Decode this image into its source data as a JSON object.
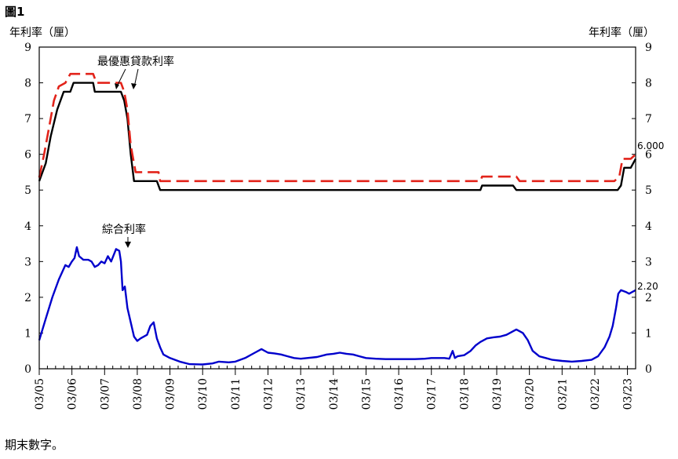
{
  "figure_label": "圖1",
  "footnote": "期末數字。",
  "chart_data": {
    "type": "line",
    "ylabel_left": "年利率（厘）",
    "ylabel_right": "年利率（厘）",
    "ylim": [
      0,
      9
    ],
    "yticks": [
      "0",
      "1",
      "2",
      "3",
      "4",
      "5",
      "6",
      "7",
      "8",
      "9"
    ],
    "xlim": [
      2005.0,
      2023.25
    ],
    "categories": [
      "03/05",
      "03/06",
      "03/07",
      "03/08",
      "03/09",
      "03/10",
      "03/11",
      "03/12",
      "03/13",
      "03/14",
      "03/15",
      "03/16",
      "03/17",
      "03/18",
      "03/19",
      "03/20",
      "03/21",
      "03/22",
      "03/23"
    ],
    "annotations": {
      "prime": "最優惠貸款利率",
      "composite": "綜合利率"
    },
    "series": [
      {
        "name": "",
        "color": "#000000",
        "style": "solid",
        "end_label": "",
        "points": [
          [
            2005.0,
            5.25
          ],
          [
            2005.2,
            5.75
          ],
          [
            2005.35,
            6.5
          ],
          [
            2005.55,
            7.25
          ],
          [
            2005.75,
            7.75
          ],
          [
            2005.95,
            7.75
          ],
          [
            2006.05,
            8.0
          ],
          [
            2006.65,
            8.0
          ],
          [
            2006.7,
            7.75
          ],
          [
            2007.5,
            7.75
          ],
          [
            2007.6,
            7.5
          ],
          [
            2007.7,
            7.0
          ],
          [
            2007.8,
            6.0
          ],
          [
            2007.9,
            5.25
          ],
          [
            2008.6,
            5.25
          ],
          [
            2008.7,
            5.0
          ],
          [
            2018.5,
            5.0
          ],
          [
            2018.55,
            5.125
          ],
          [
            2019.5,
            5.125
          ],
          [
            2019.6,
            5.0
          ],
          [
            2022.7,
            5.0
          ],
          [
            2022.8,
            5.125
          ],
          [
            2022.9,
            5.625
          ],
          [
            2023.1,
            5.625
          ],
          [
            2023.25,
            5.875
          ]
        ]
      },
      {
        "name": "",
        "color": "#e2231a",
        "style": "dashed",
        "end_label": "6.000",
        "points": [
          [
            2005.0,
            5.35
          ],
          [
            2005.15,
            6.0
          ],
          [
            2005.3,
            6.75
          ],
          [
            2005.45,
            7.5
          ],
          [
            2005.6,
            7.9
          ],
          [
            2005.8,
            8.0
          ],
          [
            2005.95,
            8.25
          ],
          [
            2006.65,
            8.25
          ],
          [
            2006.75,
            8.0
          ],
          [
            2007.5,
            8.0
          ],
          [
            2007.6,
            7.75
          ],
          [
            2007.7,
            7.25
          ],
          [
            2007.8,
            6.25
          ],
          [
            2007.95,
            5.5
          ],
          [
            2008.65,
            5.5
          ],
          [
            2008.7,
            5.25
          ],
          [
            2018.5,
            5.25
          ],
          [
            2018.55,
            5.375
          ],
          [
            2019.6,
            5.375
          ],
          [
            2019.7,
            5.25
          ],
          [
            2022.6,
            5.25
          ],
          [
            2022.75,
            5.375
          ],
          [
            2022.85,
            5.875
          ],
          [
            2023.1,
            5.875
          ],
          [
            2023.25,
            6.0
          ]
        ]
      },
      {
        "name": "",
        "color": "#0000cc",
        "style": "solid",
        "end_label": "2.20",
        "points": [
          [
            2005.0,
            0.8
          ],
          [
            2005.2,
            1.4
          ],
          [
            2005.4,
            2.0
          ],
          [
            2005.6,
            2.5
          ],
          [
            2005.8,
            2.9
          ],
          [
            2005.9,
            2.85
          ],
          [
            2006.0,
            3.0
          ],
          [
            2006.08,
            3.1
          ],
          [
            2006.15,
            3.4
          ],
          [
            2006.22,
            3.15
          ],
          [
            2006.35,
            3.05
          ],
          [
            2006.5,
            3.05
          ],
          [
            2006.6,
            3.0
          ],
          [
            2006.7,
            2.85
          ],
          [
            2006.8,
            2.9
          ],
          [
            2006.9,
            3.0
          ],
          [
            2007.0,
            2.95
          ],
          [
            2007.1,
            3.15
          ],
          [
            2007.2,
            3.0
          ],
          [
            2007.35,
            3.35
          ],
          [
            2007.45,
            3.3
          ],
          [
            2007.5,
            3.0
          ],
          [
            2007.55,
            2.2
          ],
          [
            2007.62,
            2.3
          ],
          [
            2007.7,
            1.7
          ],
          [
            2007.8,
            1.3
          ],
          [
            2007.9,
            0.9
          ],
          [
            2008.0,
            0.78
          ],
          [
            2008.1,
            0.85
          ],
          [
            2008.3,
            0.95
          ],
          [
            2008.4,
            1.2
          ],
          [
            2008.5,
            1.3
          ],
          [
            2008.6,
            0.85
          ],
          [
            2008.7,
            0.6
          ],
          [
            2008.8,
            0.4
          ],
          [
            2009.0,
            0.3
          ],
          [
            2009.3,
            0.2
          ],
          [
            2009.6,
            0.13
          ],
          [
            2010.0,
            0.12
          ],
          [
            2010.3,
            0.15
          ],
          [
            2010.5,
            0.2
          ],
          [
            2010.8,
            0.18
          ],
          [
            2011.0,
            0.2
          ],
          [
            2011.3,
            0.3
          ],
          [
            2011.6,
            0.45
          ],
          [
            2011.8,
            0.55
          ],
          [
            2012.0,
            0.45
          ],
          [
            2012.2,
            0.43
          ],
          [
            2012.4,
            0.4
          ],
          [
            2012.6,
            0.35
          ],
          [
            2012.8,
            0.3
          ],
          [
            2013.0,
            0.28
          ],
          [
            2013.2,
            0.3
          ],
          [
            2013.5,
            0.33
          ],
          [
            2013.8,
            0.4
          ],
          [
            2014.0,
            0.42
          ],
          [
            2014.2,
            0.45
          ],
          [
            2014.4,
            0.42
          ],
          [
            2014.6,
            0.4
          ],
          [
            2014.8,
            0.35
          ],
          [
            2015.0,
            0.3
          ],
          [
            2015.3,
            0.28
          ],
          [
            2015.6,
            0.27
          ],
          [
            2016.0,
            0.27
          ],
          [
            2016.5,
            0.27
          ],
          [
            2016.8,
            0.28
          ],
          [
            2017.0,
            0.3
          ],
          [
            2017.4,
            0.3
          ],
          [
            2017.55,
            0.28
          ],
          [
            2017.65,
            0.5
          ],
          [
            2017.72,
            0.3
          ],
          [
            2017.8,
            0.35
          ],
          [
            2018.0,
            0.38
          ],
          [
            2018.2,
            0.5
          ],
          [
            2018.35,
            0.65
          ],
          [
            2018.5,
            0.75
          ],
          [
            2018.7,
            0.85
          ],
          [
            2018.9,
            0.88
          ],
          [
            2019.1,
            0.9
          ],
          [
            2019.3,
            0.95
          ],
          [
            2019.5,
            1.05
          ],
          [
            2019.6,
            1.1
          ],
          [
            2019.7,
            1.05
          ],
          [
            2019.8,
            1.0
          ],
          [
            2019.95,
            0.8
          ],
          [
            2020.1,
            0.5
          ],
          [
            2020.3,
            0.35
          ],
          [
            2020.5,
            0.3
          ],
          [
            2020.7,
            0.25
          ],
          [
            2021.0,
            0.22
          ],
          [
            2021.3,
            0.2
          ],
          [
            2021.6,
            0.22
          ],
          [
            2021.9,
            0.25
          ],
          [
            2022.1,
            0.35
          ],
          [
            2022.3,
            0.6
          ],
          [
            2022.45,
            0.9
          ],
          [
            2022.55,
            1.2
          ],
          [
            2022.65,
            1.7
          ],
          [
            2022.72,
            2.1
          ],
          [
            2022.8,
            2.2
          ],
          [
            2022.95,
            2.15
          ],
          [
            2023.05,
            2.1
          ],
          [
            2023.15,
            2.15
          ],
          [
            2023.25,
            2.2
          ]
        ]
      }
    ]
  }
}
